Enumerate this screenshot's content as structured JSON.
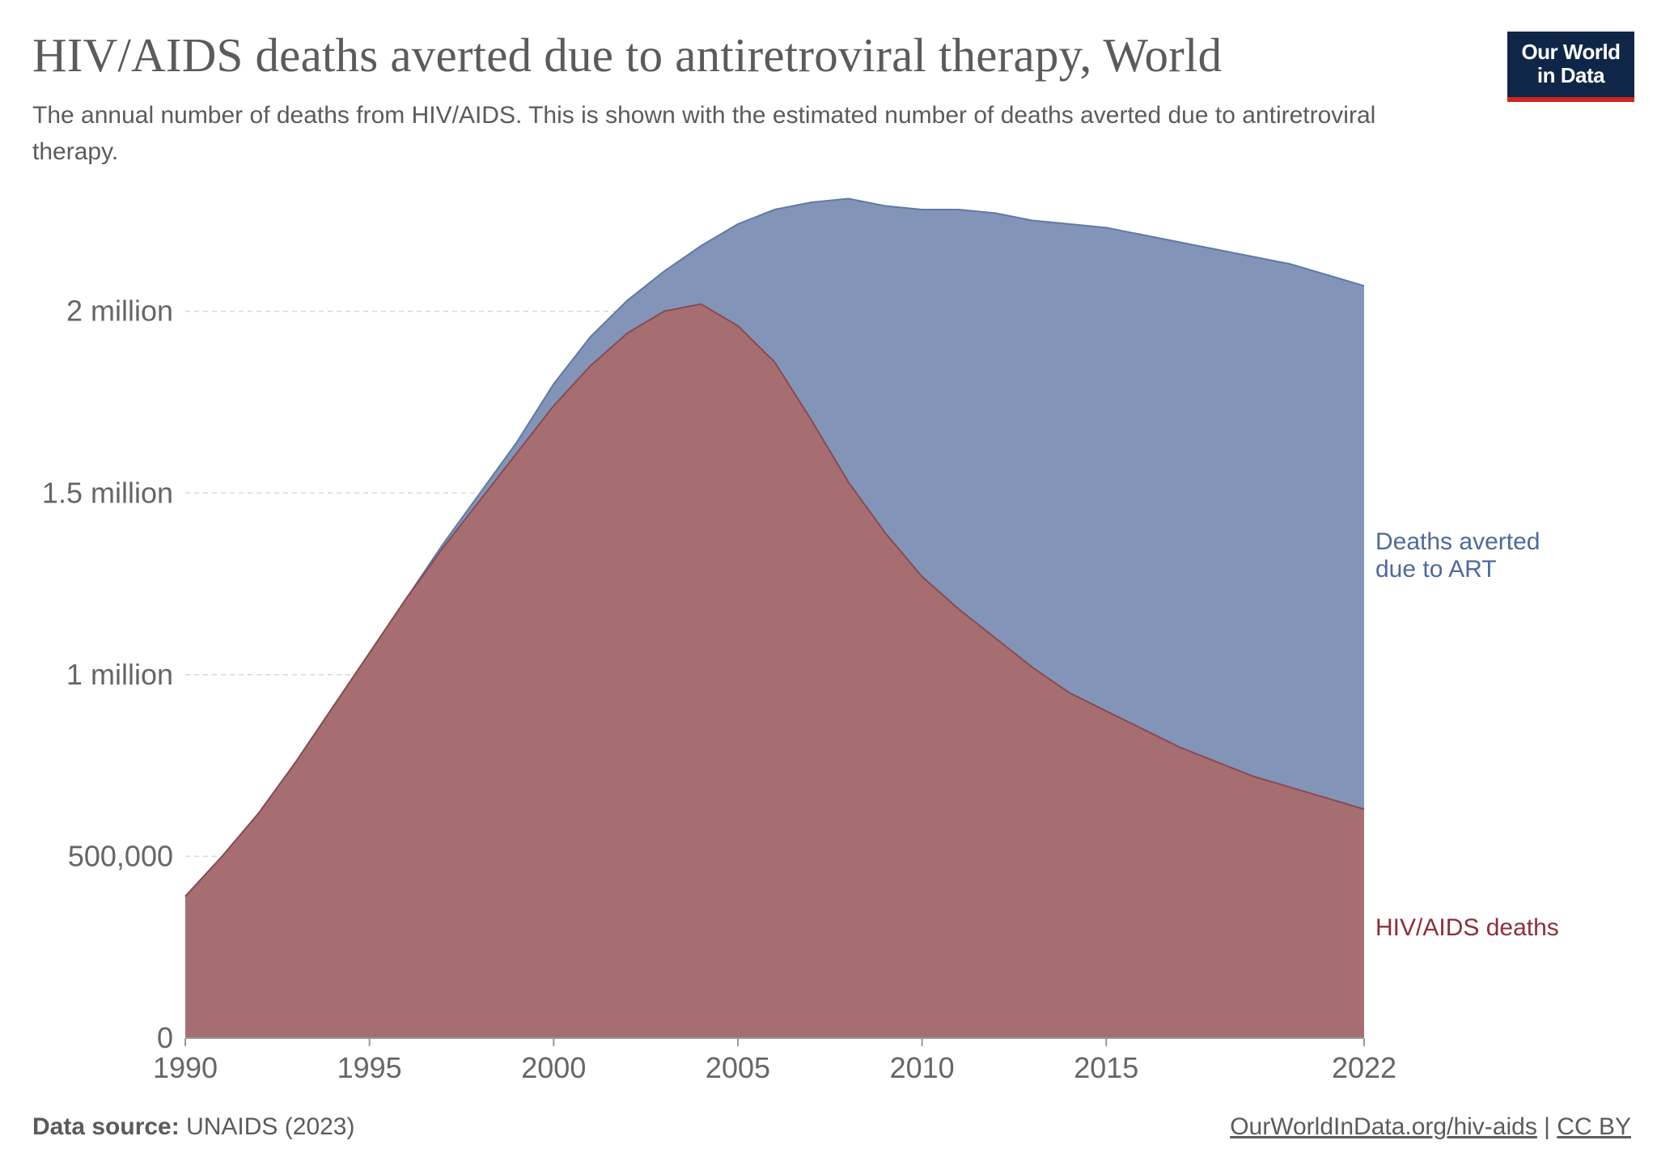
{
  "header": {
    "title": "HIV/AIDS deaths averted due to antiretroviral therapy, World",
    "subtitle": "The annual number of deaths from HIV/AIDS. This is shown with the estimated number of deaths averted due to antiretroviral therapy."
  },
  "logo": {
    "line1": "Our World",
    "line2": "in Data"
  },
  "footer": {
    "source_label": "Data source:",
    "source_value": "UNAIDS (2023)",
    "url": "OurWorldInData.org/hiv-aids",
    "separator": "|",
    "license": "CC BY"
  },
  "colors": {
    "deaths": "#a76e72",
    "averted": "#8295b8",
    "deaths_label": "#8c2f39",
    "averted_label": "#4c6a9c"
  },
  "chart_data": {
    "type": "area",
    "stacked": true,
    "ylim": [
      0,
      2300000
    ],
    "y_ticks": [
      0,
      500000,
      1000000,
      1500000,
      2000000
    ],
    "y_tick_labels": [
      "0",
      "500,000",
      "1 million",
      "1.5 million",
      "2 million"
    ],
    "x_ticks": [
      1990,
      1995,
      2000,
      2005,
      2010,
      2015,
      2022
    ],
    "x_tick_labels": [
      "1990",
      "1995",
      "2000",
      "2005",
      "2010",
      "2015",
      "2022"
    ],
    "grid": true,
    "x": [
      1990,
      1991,
      1992,
      1993,
      1994,
      1995,
      1996,
      1997,
      1998,
      1999,
      2000,
      2001,
      2002,
      2003,
      2004,
      2005,
      2006,
      2007,
      2008,
      2009,
      2010,
      2011,
      2012,
      2013,
      2014,
      2015,
      2016,
      2017,
      2018,
      2019,
      2020,
      2021,
      2022
    ],
    "series": [
      {
        "name": "HIV/AIDS deaths",
        "values": [
          390000,
          500000,
          620000,
          760000,
          910000,
          1060000,
          1210000,
          1350000,
          1480000,
          1610000,
          1740000,
          1850000,
          1940000,
          2000000,
          2020000,
          1960000,
          1860000,
          1700000,
          1530000,
          1390000,
          1270000,
          1180000,
          1100000,
          1020000,
          950000,
          900000,
          850000,
          800000,
          760000,
          720000,
          690000,
          660000,
          630000
        ]
      },
      {
        "name": "Deaths averted due to ART",
        "values": [
          0,
          0,
          0,
          0,
          0,
          0,
          0,
          10000,
          20000,
          30000,
          60000,
          80000,
          90000,
          110000,
          160000,
          280000,
          420000,
          600000,
          780000,
          900000,
          1010000,
          1100000,
          1170000,
          1230000,
          1290000,
          1330000,
          1360000,
          1390000,
          1410000,
          1430000,
          1440000,
          1440000,
          1440000
        ]
      }
    ]
  }
}
